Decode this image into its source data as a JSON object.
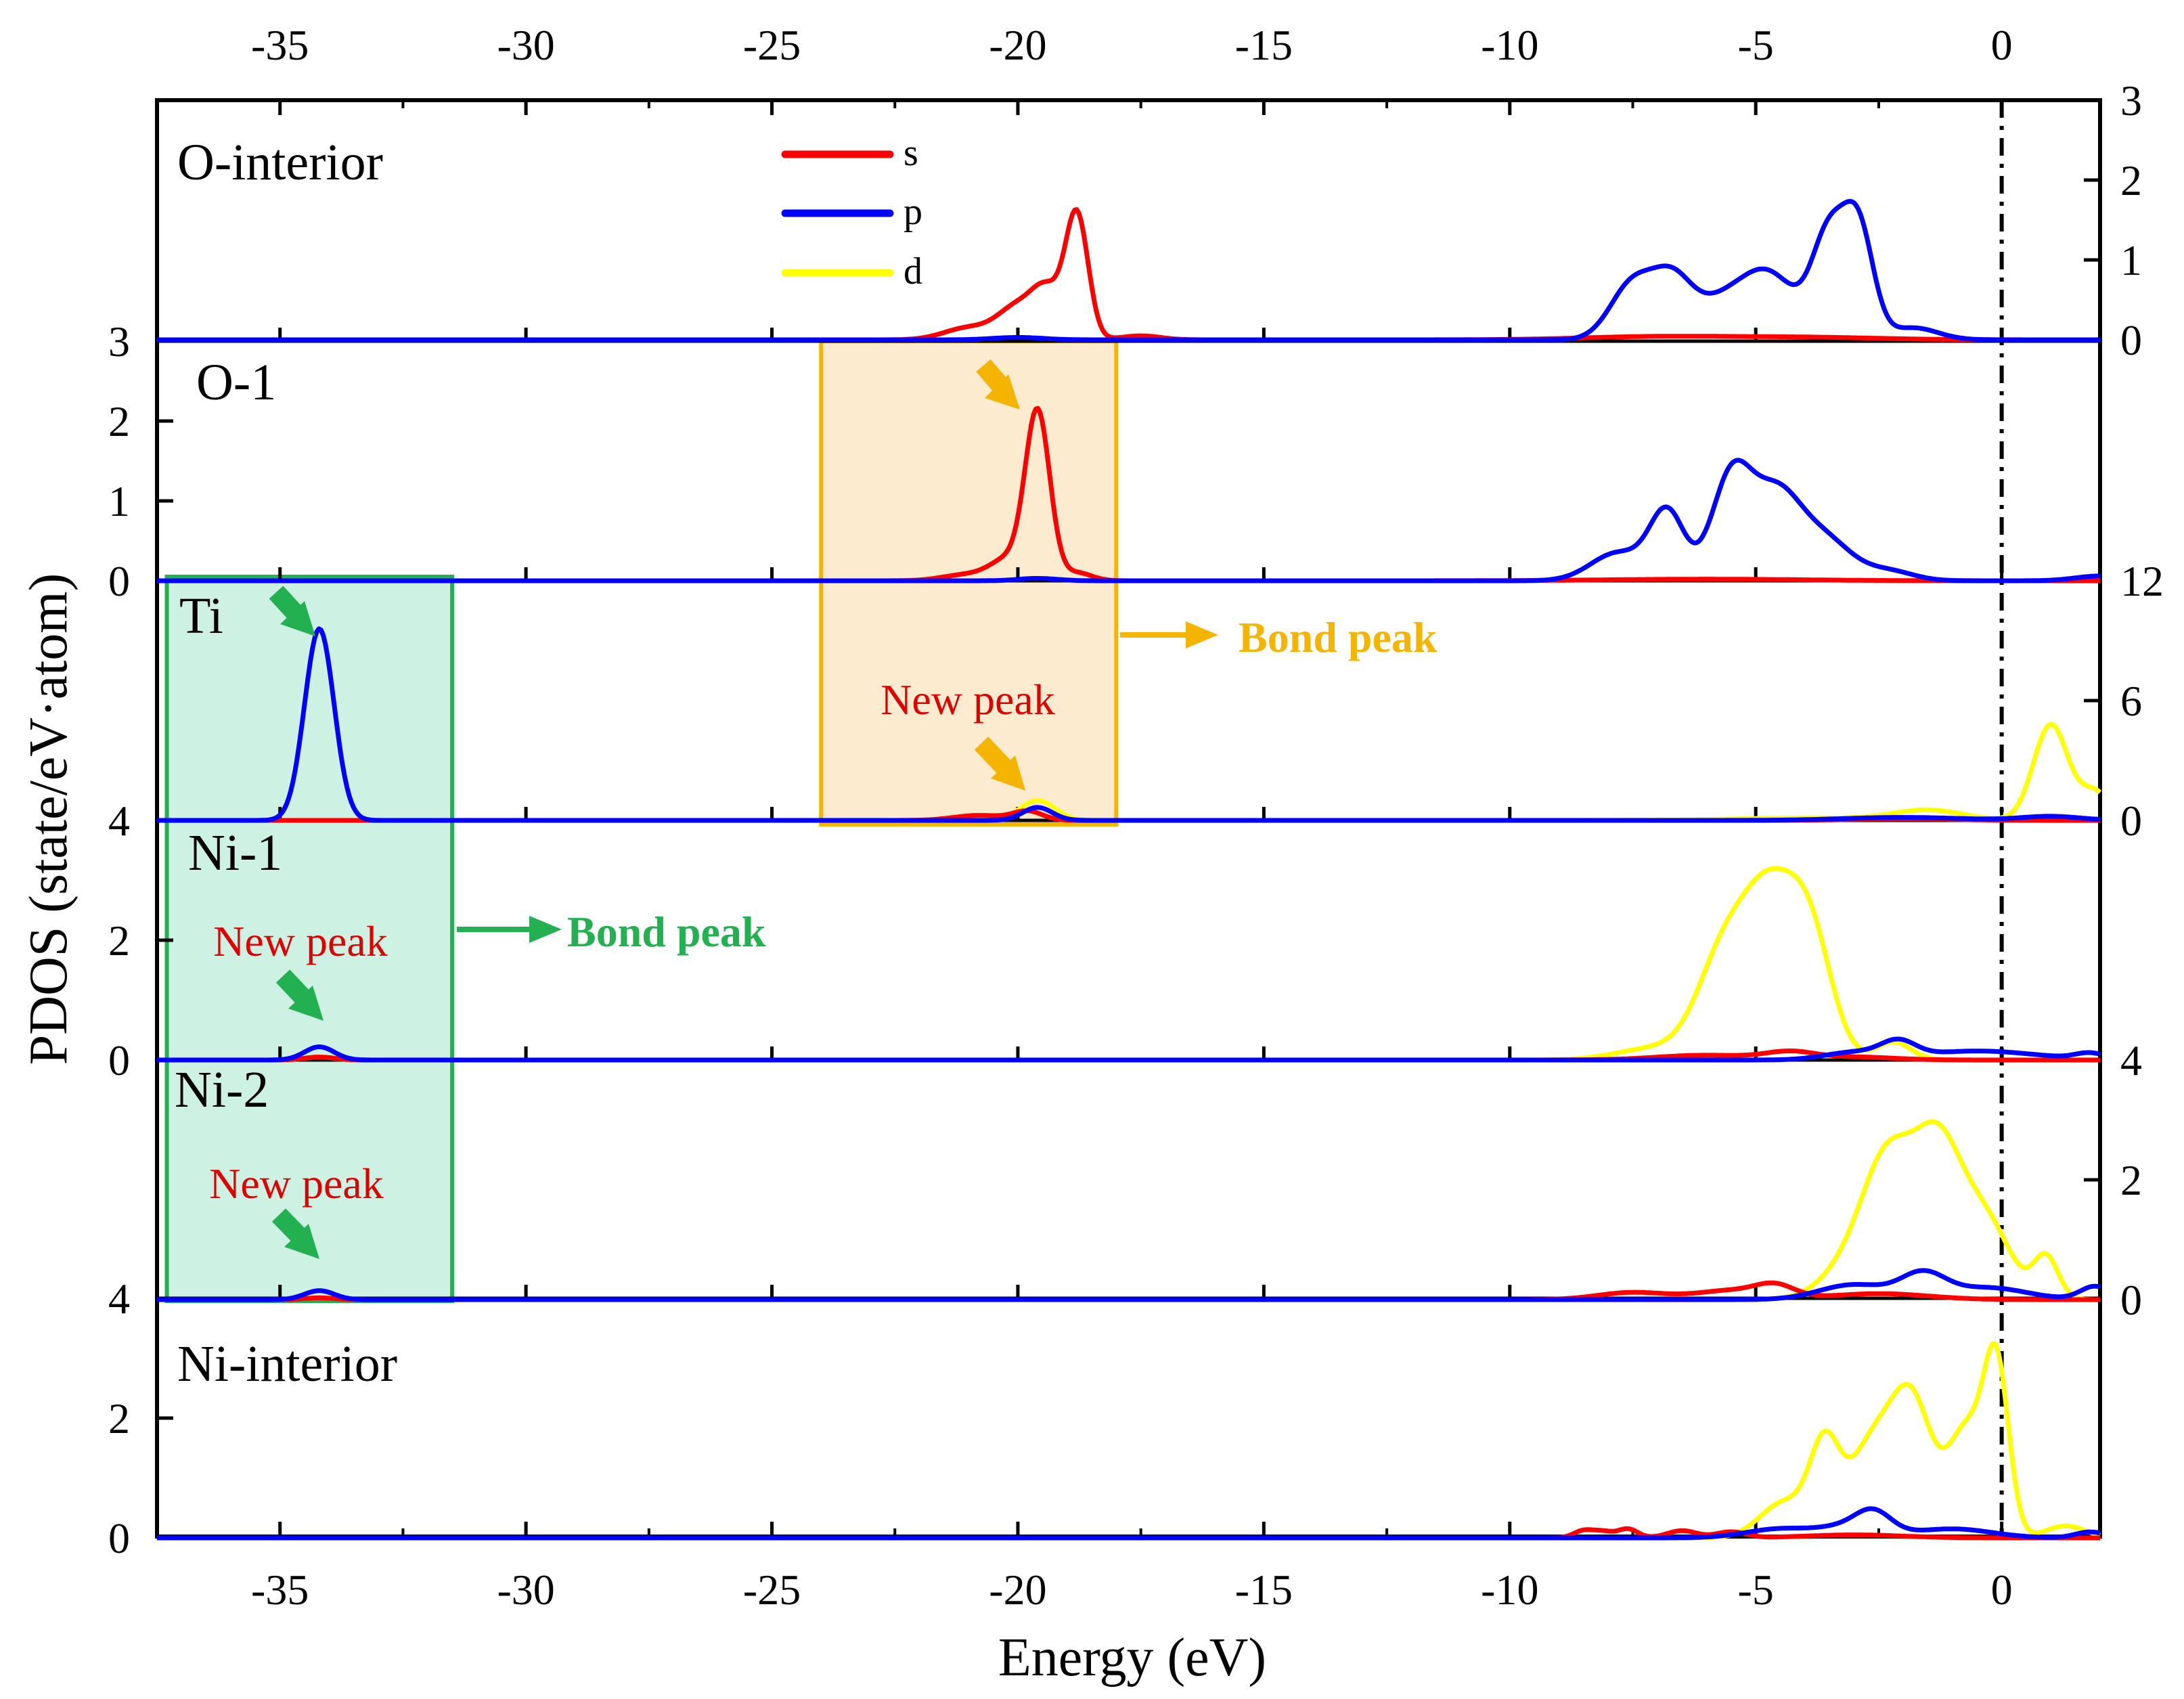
{
  "chart_data": {
    "type": "line",
    "title": "",
    "xlabel": "Energy (eV)",
    "ylabel": "PDOS (state/eV·atom)",
    "xlim": [
      -37.5,
      2.0
    ],
    "x_ticks": [
      -35,
      -30,
      -25,
      -20,
      -15,
      -10,
      -5,
      0
    ],
    "x_tick_labels": [
      "-35",
      "-30",
      "-25",
      "-20",
      "-15",
      "-10",
      "-5",
      "0"
    ],
    "fermi_level": 0,
    "legend": {
      "position": "top-center",
      "entries": [
        {
          "label": "s",
          "color": "#ff0000"
        },
        {
          "label": "p",
          "color": "#0000ff"
        },
        {
          "label": "d",
          "color": "#ffff00"
        }
      ]
    },
    "colors": {
      "s": "#ff0000",
      "p": "#0000ff",
      "d": "#ffff00",
      "axis": "#000000",
      "orange_box": "#f5b400",
      "orange_fill": "#fdebcf",
      "green_box": "#22b050",
      "green_fill": "#cdf2e3",
      "annotation_red": "#e00000"
    },
    "panels": [
      {
        "id": "o-interior",
        "label": "O-interior",
        "axis_side": "right",
        "ylim": [
          0,
          3
        ],
        "y_ticks": [
          0,
          1,
          2,
          3
        ],
        "y_tick_labels": [
          "0",
          "1",
          "2",
          "3"
        ],
        "series": [
          {
            "name": "s",
            "peaks": [
              [
                -21.0,
                0.15,
                0.5
              ],
              [
                -20.0,
                0.4,
                0.4
              ],
              [
                -19.4,
                0.55,
                0.3
              ],
              [
                -18.8,
                1.55,
                0.23
              ],
              [
                -17.5,
                0.05,
                0.4
              ],
              [
                -7.0,
                0.04,
                1.5
              ],
              [
                -4.0,
                0.03,
                1.5
              ]
            ]
          },
          {
            "name": "p",
            "peaks": [
              [
                -20.0,
                0.03,
                0.5
              ],
              [
                -7.5,
                0.7,
                0.45
              ],
              [
                -6.7,
                0.65,
                0.4
              ],
              [
                -5.7,
                0.45,
                0.6
              ],
              [
                -4.7,
                0.75,
                0.55
              ],
              [
                -3.5,
                1.3,
                0.35
              ],
              [
                -2.9,
                1.3,
                0.3
              ],
              [
                -1.8,
                0.15,
                0.5
              ]
            ]
          }
        ]
      },
      {
        "id": "o-1",
        "label": "O-1",
        "axis_side": "left",
        "ylim": [
          0,
          3
        ],
        "y_ticks": [
          0,
          1,
          2,
          3
        ],
        "y_tick_labels": [
          "0",
          "1",
          "2",
          "3"
        ],
        "series": [
          {
            "name": "s",
            "peaks": [
              [
                -21.0,
                0.08,
                0.5
              ],
              [
                -20.2,
                0.25,
                0.35
              ],
              [
                -19.6,
                2.1,
                0.25
              ],
              [
                -18.8,
                0.1,
                0.3
              ],
              [
                -6.0,
                0.02,
                2.0
              ]
            ]
          },
          {
            "name": "p",
            "peaks": [
              [
                -19.6,
                0.03,
                0.4
              ],
              [
                -7.8,
                0.35,
                0.55
              ],
              [
                -6.8,
                0.85,
                0.35
              ],
              [
                -5.5,
                1.25,
                0.4
              ],
              [
                -4.6,
                1.05,
                0.5
              ],
              [
                -3.6,
                0.5,
                0.55
              ],
              [
                -2.3,
                0.12,
                0.5
              ],
              [
                2.0,
                0.06,
                0.5
              ]
            ]
          }
        ]
      },
      {
        "id": "ti",
        "label": "Ti",
        "axis_side": "right",
        "ylim": [
          0,
          12
        ],
        "y_ticks": [
          0,
          6,
          12
        ],
        "y_tick_labels": [
          "0",
          "6",
          "12"
        ],
        "series": [
          {
            "name": "s",
            "peaks": [
              [
                -20.8,
                0.25,
                0.5
              ],
              [
                -19.8,
                0.45,
                0.3
              ],
              [
                -2.0,
                0.08,
                1.0
              ]
            ]
          },
          {
            "name": "p",
            "peaks": [
              [
                -34.2,
                9.6,
                0.3
              ],
              [
                -19.6,
                0.65,
                0.3
              ],
              [
                -2.0,
                0.15,
                1.2
              ],
              [
                1.0,
                0.2,
                0.6
              ]
            ]
          },
          {
            "name": "d",
            "peaks": [
              [
                -19.6,
                1.0,
                0.35
              ],
              [
                -4.0,
                0.12,
                1.5
              ],
              [
                -1.5,
                0.5,
                0.7
              ],
              [
                1.0,
                4.8,
                0.35
              ],
              [
                1.9,
                1.4,
                0.3
              ]
            ]
          }
        ]
      },
      {
        "id": "ni-1",
        "label": "Ni-1",
        "axis_side": "left",
        "ylim": [
          0,
          4
        ],
        "y_ticks": [
          0,
          2,
          4
        ],
        "y_tick_labels": [
          "0",
          "2",
          "4"
        ],
        "series": [
          {
            "name": "s",
            "peaks": [
              [
                -34.2,
                0.05,
                0.3
              ],
              [
                -6.0,
                0.08,
                1.0
              ],
              [
                -4.3,
                0.12,
                0.5
              ],
              [
                -3.0,
                0.05,
                0.8
              ]
            ]
          },
          {
            "name": "p",
            "peaks": [
              [
                -34.2,
                0.22,
                0.3
              ],
              [
                -3.0,
                0.12,
                0.6
              ],
              [
                -2.1,
                0.25,
                0.35
              ],
              [
                -0.5,
                0.15,
                1.2
              ],
              [
                1.8,
                0.1,
                0.3
              ]
            ]
          },
          {
            "name": "d",
            "peaks": [
              [
                -34.2,
                0.05,
                0.3
              ],
              [
                -7.0,
                0.2,
                0.8
              ],
              [
                -5.6,
                1.8,
                0.55
              ],
              [
                -4.7,
                2.3,
                0.5
              ],
              [
                -3.9,
                2.0,
                0.45
              ],
              [
                -2.2,
                0.3,
                0.35
              ]
            ]
          }
        ]
      },
      {
        "id": "ni-2",
        "label": "Ni-2",
        "axis_side": "right",
        "ylim": [
          0,
          4
        ],
        "y_ticks": [
          0,
          2,
          4
        ],
        "y_tick_labels": [
          "0",
          "2",
          "4"
        ],
        "series": [
          {
            "name": "s",
            "peaks": [
              [
                -34.2,
                0.03,
                0.3
              ],
              [
                -7.5,
                0.12,
                0.7
              ],
              [
                -5.5,
                0.15,
                0.7
              ],
              [
                -4.6,
                0.2,
                0.4
              ],
              [
                -2.5,
                0.1,
                1.0
              ]
            ]
          },
          {
            "name": "p",
            "peaks": [
              [
                -34.2,
                0.15,
                0.3
              ],
              [
                -3.0,
                0.25,
                0.7
              ],
              [
                -1.6,
                0.4,
                0.45
              ],
              [
                -0.3,
                0.2,
                0.8
              ],
              [
                1.9,
                0.22,
                0.3
              ]
            ]
          },
          {
            "name": "d",
            "peaks": [
              [
                -34.2,
                0.04,
                0.3
              ],
              [
                -3.0,
                0.6,
                0.6
              ],
              [
                -2.3,
                2.0,
                0.5
              ],
              [
                -1.3,
                2.5,
                0.5
              ],
              [
                -0.3,
                1.2,
                0.5
              ],
              [
                0.9,
                0.7,
                0.25
              ]
            ]
          }
        ]
      },
      {
        "id": "ni-interior",
        "label": "Ni-interior",
        "axis_side": "left",
        "ylim": [
          0,
          4
        ],
        "y_ticks": [
          0,
          2,
          4
        ],
        "y_tick_labels": [
          "0",
          "2",
          "4"
        ],
        "series": [
          {
            "name": "s",
            "peaks": [
              [
                -8.5,
                0.12,
                0.2
              ],
              [
                -8.1,
                0.1,
                0.2
              ],
              [
                -7.6,
                0.15,
                0.2
              ],
              [
                -6.5,
                0.12,
                0.3
              ],
              [
                -5.5,
                0.1,
                0.3
              ],
              [
                -3.0,
                0.05,
                1.0
              ]
            ]
          },
          {
            "name": "p",
            "peaks": [
              [
                -4.5,
                0.15,
                0.7
              ],
              [
                -3.0,
                0.2,
                0.6
              ],
              [
                -2.6,
                0.3,
                0.35
              ],
              [
                -1.0,
                0.15,
                0.8
              ],
              [
                1.8,
                0.1,
                0.3
              ]
            ]
          },
          {
            "name": "d",
            "peaks": [
              [
                -4.4,
                0.6,
                0.5
              ],
              [
                -3.6,
                1.4,
                0.3
              ],
              [
                -2.6,
                1.6,
                0.5
              ],
              [
                -1.8,
                2.0,
                0.4
              ],
              [
                -0.7,
                1.8,
                0.4
              ],
              [
                -0.1,
                2.6,
                0.25
              ],
              [
                1.3,
                0.2,
                0.4
              ]
            ]
          }
        ]
      }
    ],
    "annotations": [
      {
        "id": "bond-peak-orange",
        "text": "Bond peak",
        "color": "#f5b400",
        "panel_box": "o-1 to ti",
        "x_range": [
          -24.0,
          -18.0
        ]
      },
      {
        "id": "bond-peak-green",
        "text": "Bond peak",
        "color": "#22b050",
        "panel_box": "ti to ni-2",
        "x_range": [
          -37.3,
          -31.5
        ]
      },
      {
        "id": "new-peak-ti",
        "text": "New peak",
        "color": "#e00000",
        "panel": "ti"
      },
      {
        "id": "new-peak-ni1",
        "text": "New peak",
        "color": "#e00000",
        "panel": "ni-1"
      },
      {
        "id": "new-peak-ni2",
        "text": "New peak",
        "color": "#e00000",
        "panel": "ni-2"
      }
    ]
  }
}
